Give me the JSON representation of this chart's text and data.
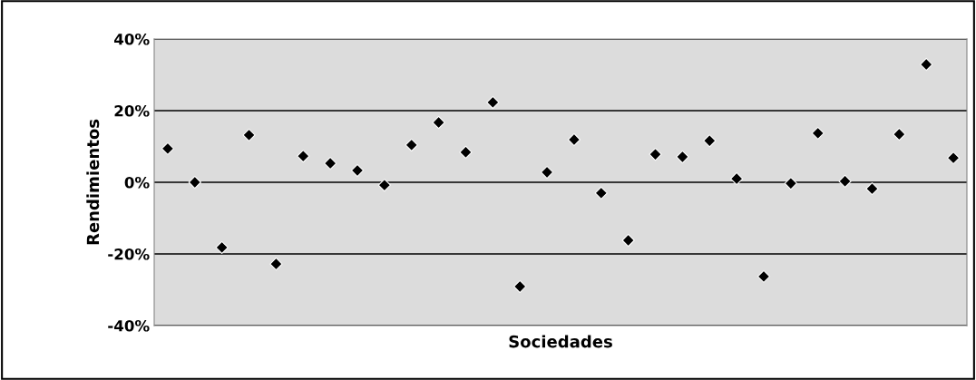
{
  "chart_data": {
    "type": "scatter",
    "xlabel": "Sociedades",
    "ylabel": "Rendimientos",
    "categories": [
      null,
      null,
      null,
      null,
      null,
      null,
      null,
      null,
      null,
      null,
      null,
      null,
      null,
      null,
      null,
      null,
      null,
      null,
      null,
      null,
      null,
      null,
      null,
      null,
      null,
      null,
      null,
      null,
      null,
      null
    ],
    "values": [
      9.4,
      0,
      -18.2,
      13.2,
      -22.8,
      7.3,
      5.3,
      3.3,
      -0.8,
      10.4,
      16.7,
      8.4,
      22.3,
      -29.1,
      2.8,
      11.9,
      -3.0,
      -16.2,
      7.8,
      7.1,
      11.6,
      1.0,
      -26.3,
      -0.3,
      13.7,
      0.3,
      -1.8,
      13.4,
      32.9,
      6.8
    ],
    "color": "#000000",
    "marker": "diamond",
    "grid": "y",
    "ylim": [
      -40,
      40
    ],
    "yticks": [
      {
        "value": -40,
        "label": "-40%"
      },
      {
        "value": -20,
        "label": "-20%"
      },
      {
        "value": 0,
        "label": "0%"
      },
      {
        "value": 20,
        "label": "20%"
      },
      {
        "value": 40,
        "label": "40%"
      }
    ]
  }
}
